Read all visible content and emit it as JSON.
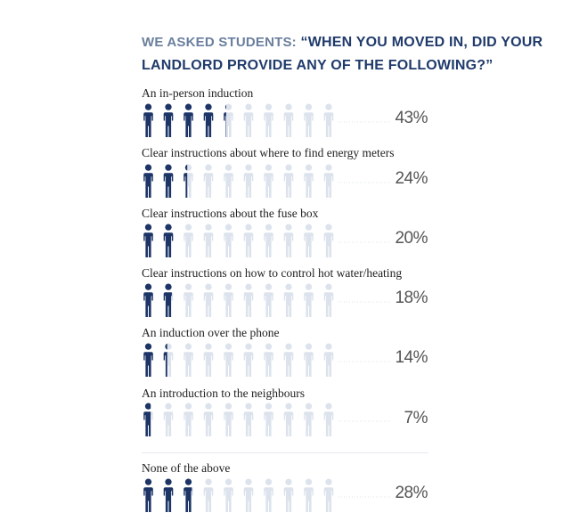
{
  "title": {
    "lead": "WE ASKED STUDENTS:",
    "question_line1": "“WHEN YOU MOVED IN, DID YOUR",
    "question_line2": "LANDLORD PROVIDE ANY OF THE FOLLOWING?”"
  },
  "colors": {
    "filled": "#1c3466",
    "empty": "#dde3ec",
    "dots": "#dfe3ea",
    "title": "#1f3a6b"
  },
  "chart_data": {
    "type": "bar",
    "encoding": "pictogram (10 person icons = 100%)",
    "categories": [
      "An in-person induction",
      "Clear instructions about where to find energy meters",
      "Clear instructions about the fuse box",
      "Clear instructions on how to control hot water/heating",
      "An induction over the phone",
      "An introduction to the neighbours",
      "None of the above"
    ],
    "values": [
      43,
      24,
      20,
      18,
      14,
      7,
      28
    ],
    "labels": [
      "43%",
      "24%",
      "20%",
      "18%",
      "14%",
      "7%",
      "28%"
    ],
    "ylim": [
      0,
      100
    ]
  }
}
